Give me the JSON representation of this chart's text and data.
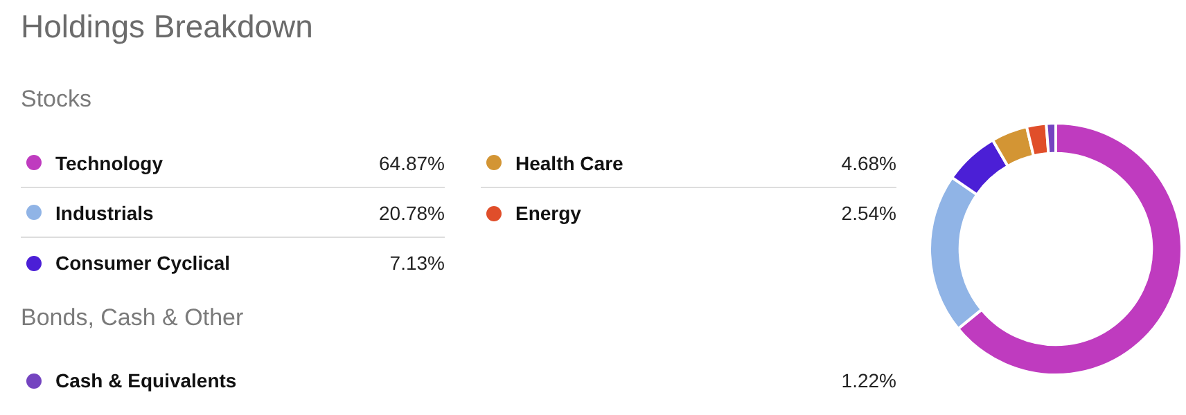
{
  "chart_data": {
    "type": "donut",
    "title": "Holdings Breakdown",
    "annotations": [
      "Stocks",
      "Bonds, Cash & Other"
    ],
    "categories": [
      "Technology",
      "Industrials",
      "Consumer Cyclical",
      "Health Care",
      "Energy",
      "Cash & Equivalents"
    ],
    "values": [
      64.87,
      20.78,
      7.13,
      4.68,
      2.54,
      1.22
    ],
    "value_labels": [
      "64.87%",
      "20.78%",
      "7.13%",
      "4.68%",
      "2.54%",
      "1.22%"
    ],
    "colors": [
      "#bf3bbf",
      "#90b4e6",
      "#4b1fd6",
      "#d39534",
      "#e04e2a",
      "#7444c0"
    ],
    "legend": "left"
  }
}
